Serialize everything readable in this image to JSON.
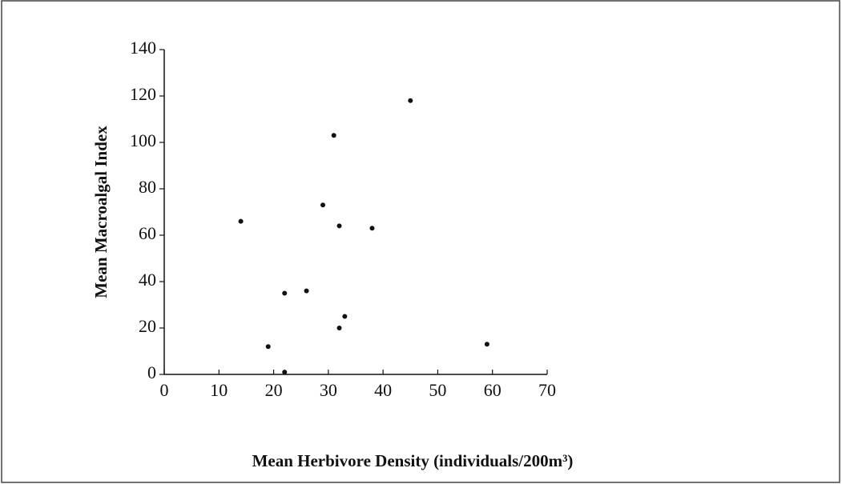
{
  "chart_data": {
    "type": "scatter",
    "x_label": "Mean Herbivore Density (individuals/200m³)",
    "y_label": "Mean Macroalgal Index",
    "x": [
      14,
      22,
      19,
      22,
      26,
      29,
      31,
      32,
      32,
      33,
      38,
      45,
      59
    ],
    "values": [
      66,
      1,
      12,
      35,
      36,
      73,
      103,
      64,
      20,
      25,
      63,
      118,
      13
    ],
    "color": "#111111",
    "xlim": [
      0,
      70
    ],
    "xticks": [
      0,
      10,
      20,
      30,
      40,
      50,
      60,
      70
    ],
    "ylim": [
      0,
      140
    ],
    "yticks": [
      0,
      20,
      40,
      60,
      80,
      100,
      120,
      140
    ],
    "grid": false
  }
}
